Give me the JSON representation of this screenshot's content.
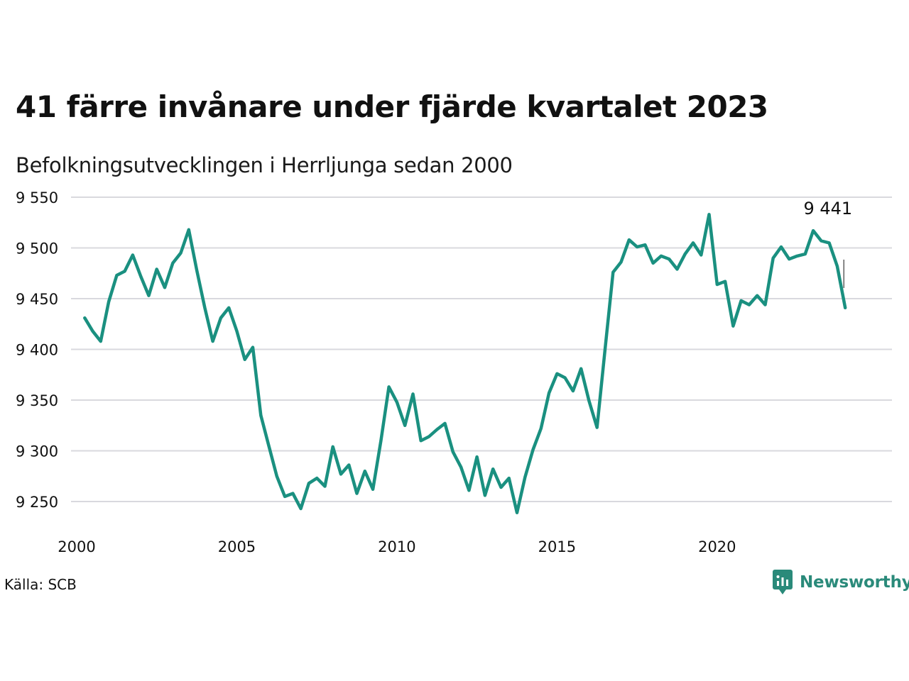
{
  "title": "41 färre invånare under fjärde kvartalet 2023",
  "subtitle": "Befolkningsutvecklingen i Herrljunga sedan 2000",
  "source": "Källa: SCB",
  "brand": {
    "name": "Newsworthy",
    "icon": "newsworthy-logo-icon",
    "color": "#2a8a7a"
  },
  "chart_data": {
    "type": "line",
    "title": "41 färre invånare under fjärde kvartalet 2023",
    "subtitle": "Befolkningsutvecklingen i Herrljunga sedan 2000",
    "xlabel": "",
    "ylabel": "",
    "x_ticks": [
      2000,
      2005,
      2010,
      2015,
      2020
    ],
    "x_tick_labels": [
      "2000",
      "2005",
      "2010",
      "2015",
      "2020"
    ],
    "y_ticks": [
      9250,
      9300,
      9350,
      9400,
      9450,
      9500,
      9550
    ],
    "y_tick_labels": [
      "9 250",
      "9 300",
      "9 350",
      "9 400",
      "9 450",
      "9 500",
      "9 550"
    ],
    "ylim": [
      9237,
      9550
    ],
    "xlim": [
      2000.0,
      2024.75
    ],
    "grid": "horizontal",
    "line_color": "#1a9080",
    "last_value_label": "9 441",
    "series": [
      {
        "start_year": 2000.25,
        "step": 0.25,
        "values": [
          9431,
          9418,
          9408,
          9447,
          9473,
          9477,
          9493,
          9472,
          9453,
          9479,
          9461,
          9485,
          9495,
          9518,
          9478,
          9441,
          9408,
          9431,
          9441,
          9418,
          9390,
          9402,
          9335,
          9305,
          9275,
          9255,
          9258,
          9243,
          9268,
          9273,
          9265,
          9304,
          9277,
          9286,
          9258,
          9280,
          9262,
          9310,
          9363,
          9348,
          9325,
          9356,
          9310,
          9314,
          9321,
          9327,
          9299,
          9284,
          9261,
          9294,
          9256,
          9282,
          9264,
          9273,
          9239,
          9274,
          9301,
          9322,
          9357,
          9376,
          9372,
          9359,
          9381,
          9349,
          9323,
          9400,
          9476,
          9486,
          9508,
          9501,
          9503,
          9485,
          9492,
          9489,
          9479,
          9494,
          9505,
          9493,
          9533,
          9464,
          9467,
          9423,
          9448,
          9444,
          9453,
          9444,
          9490,
          9501,
          9489,
          9492,
          9494,
          9517,
          9507,
          9505,
          9482,
          9441
        ]
      }
    ]
  }
}
